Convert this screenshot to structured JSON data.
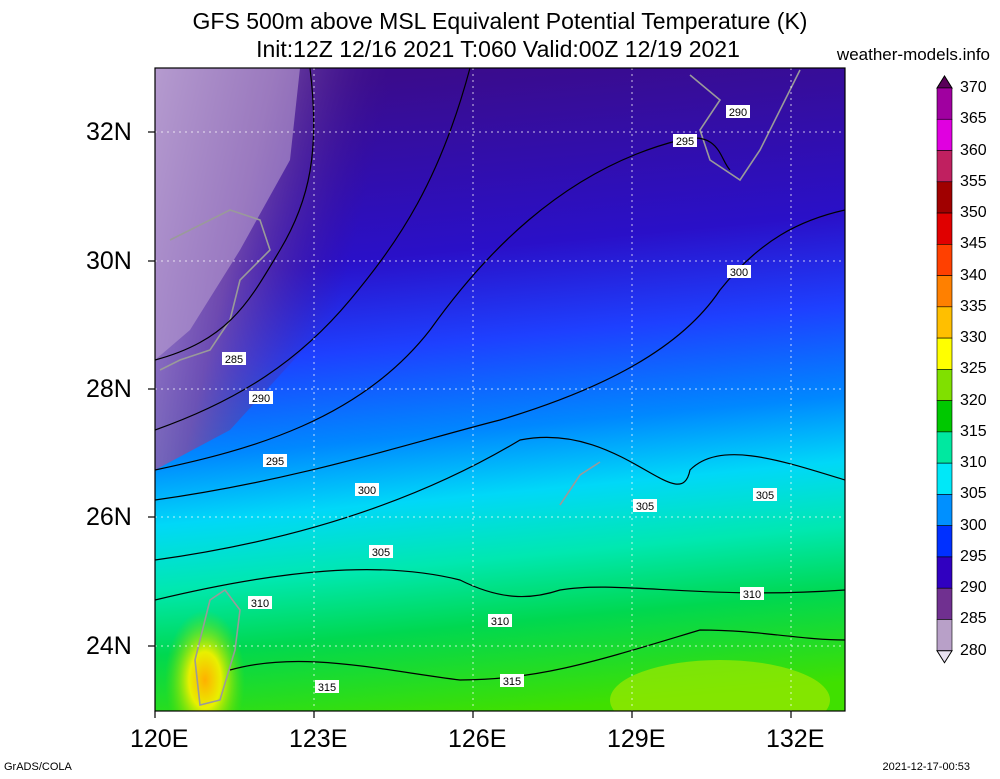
{
  "title": {
    "line1": "GFS 500m above MSL Equivalent Potential Temperature (K)",
    "line2": "Init:12Z 12/16 2021 T:060 Valid:00Z 12/19 2021"
  },
  "source": "weather-models.info",
  "footer": {
    "credit": "GrADS/COLA",
    "timestamp": "2021-12-17-00:53"
  },
  "map": {
    "lat_labels": [
      "32N",
      "30N",
      "28N",
      "26N",
      "24N"
    ],
    "lon_labels": [
      "120E",
      "123E",
      "126E",
      "129E",
      "132E"
    ],
    "lat_range": [
      23,
      33
    ],
    "lon_range": [
      120,
      133
    ],
    "contour_labels": [
      "290",
      "295",
      "285",
      "290",
      "295",
      "300",
      "300",
      "305",
      "305",
      "305",
      "310",
      "310",
      "310",
      "315",
      "315"
    ]
  },
  "colorbar": {
    "levels": [
      "370",
      "365",
      "360",
      "355",
      "350",
      "345",
      "340",
      "335",
      "330",
      "325",
      "320",
      "315",
      "310",
      "305",
      "300",
      "295",
      "290",
      "285",
      "280"
    ],
    "colors": [
      "#5a005a",
      "#a000a0",
      "#e000e0",
      "#c02060",
      "#a00000",
      "#e00000",
      "#ff4000",
      "#ff8000",
      "#ffbf00",
      "#ffff00",
      "#80e000",
      "#00c800",
      "#00e8a0",
      "#00e8f8",
      "#0090ff",
      "#0030ff",
      "#3000c0",
      "#703090",
      "#b8a0c8",
      "#e8e0f0"
    ]
  }
}
